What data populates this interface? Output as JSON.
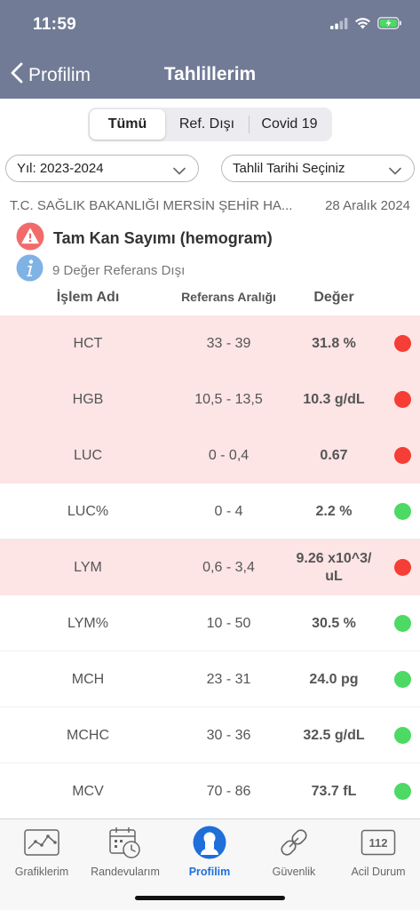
{
  "status_bar": {
    "time": "11:59"
  },
  "nav": {
    "back_label": "Profilim",
    "title": "Tahlillerim"
  },
  "segments": [
    {
      "label": "Tümü",
      "active": true
    },
    {
      "label": "Ref. Dışı",
      "active": false
    },
    {
      "label": "Covid 19",
      "active": false
    }
  ],
  "filters": {
    "year_label": "Yıl: 2023-2024",
    "date_label": "Tahlil Tarihi Seçiniz"
  },
  "report": {
    "hospital": "T.C. SAĞLIK BAKANLIĞI MERSİN ŞEHİR HA...",
    "date": "28 Aralık 2024",
    "test_name": "Tam Kan Sayımı (hemogram)",
    "out_of_range_text": "9 Değer Referans Dışı"
  },
  "table": {
    "headers": {
      "name": "İşlem Adı",
      "reference": "Referans Aralığı",
      "value": "Değer"
    },
    "rows": [
      {
        "name": "HCT",
        "reference": "33 - 39",
        "value": "31.8 %",
        "status": "abnormal"
      },
      {
        "name": "HGB",
        "reference": "10,5 - 13,5",
        "value": "10.3 g/dL",
        "status": "abnormal"
      },
      {
        "name": "LUC",
        "reference": "0 - 0,4",
        "value": "0.67",
        "status": "abnormal"
      },
      {
        "name": "LUC%",
        "reference": "0 - 4",
        "value": "2.2 %",
        "status": "normal"
      },
      {
        "name": "LYM",
        "reference": "0,6 - 3,4",
        "value": "9.26 x10^3/ uL",
        "status": "abnormal"
      },
      {
        "name": "LYM%",
        "reference": "10 - 50",
        "value": "30.5 %",
        "status": "normal"
      },
      {
        "name": "MCH",
        "reference": "23 - 31",
        "value": "24.0 pg",
        "status": "normal"
      },
      {
        "name": "MCHC",
        "reference": "30 - 36",
        "value": "32.5 g/dL",
        "status": "normal"
      },
      {
        "name": "MCV",
        "reference": "70 - 86",
        "value": "73.7 fL",
        "status": "normal"
      }
    ]
  },
  "tabbar": [
    {
      "label": "Grafiklerim",
      "icon": "chart-icon",
      "active": false
    },
    {
      "label": "Randevularım",
      "icon": "calendar-clock-icon",
      "active": false
    },
    {
      "label": "Profilim",
      "icon": "user-icon",
      "active": true
    },
    {
      "label": "Güvenlik",
      "icon": "link-icon",
      "active": false
    },
    {
      "label": "Acil Durum",
      "icon": "emergency-112-icon",
      "active": false
    }
  ],
  "emergency_badge": "112",
  "colors": {
    "header": "#717b96",
    "abnormal_row": "#fde4e5",
    "status_red": "#f53e36",
    "status_green": "#4cd964",
    "active_tab": "#1e6fd9"
  }
}
